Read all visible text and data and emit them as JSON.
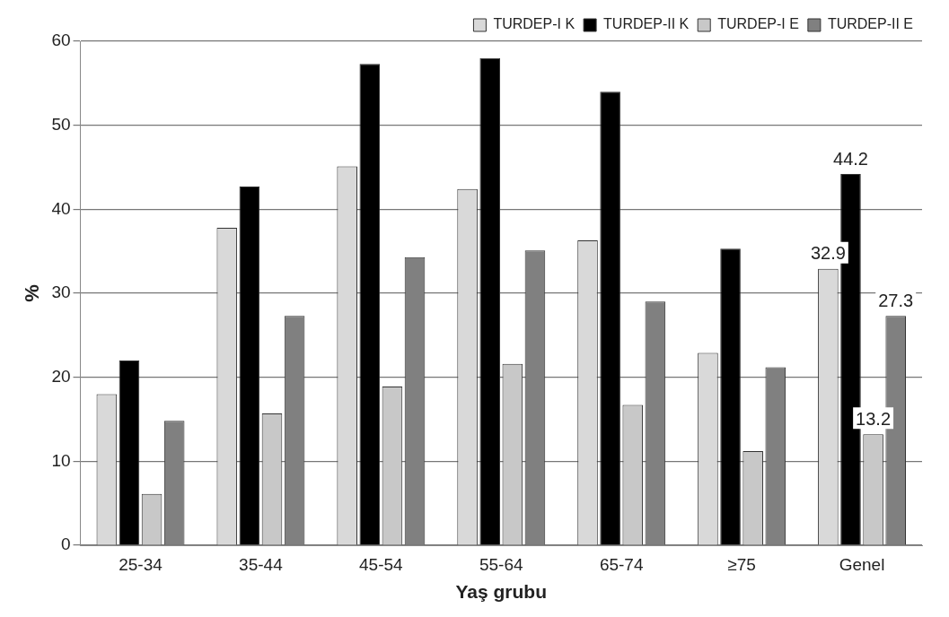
{
  "chart_data": {
    "type": "bar",
    "xlabel": "Yaş grubu",
    "ylabel": "%",
    "categories": [
      "25-34",
      "35-44",
      "45-54",
      "55-64",
      "65-74",
      "≥75",
      "Genel"
    ],
    "series": [
      {
        "name": "TURDEP-I K",
        "color": "#d9d9d9",
        "values": [
          18.0,
          37.8,
          45.1,
          42.4,
          36.3,
          22.9,
          32.9
        ],
        "value_labels": [
          null,
          null,
          null,
          null,
          null,
          null,
          "32.9"
        ]
      },
      {
        "name": "TURDEP-II K",
        "color": "#000000",
        "values": [
          22.0,
          42.7,
          57.3,
          58.0,
          54,
          35.3,
          44.2
        ],
        "value_labels": [
          null,
          null,
          null,
          null,
          null,
          null,
          "44.2"
        ]
      },
      {
        "name": "TURDEP-I E",
        "color": "#c8c8c8",
        "values": [
          6.1,
          15.7,
          18.9,
          21.6,
          16.7,
          11.2,
          13.2
        ],
        "value_labels": [
          null,
          null,
          null,
          null,
          null,
          null,
          "13.2"
        ]
      },
      {
        "name": "TURDEP-II E",
        "color": "#808080",
        "values": [
          14.8,
          27.3,
          34.3,
          35.1,
          29.0,
          21.2,
          27.3
        ],
        "value_labels": [
          null,
          null,
          null,
          null,
          null,
          null,
          "27.3"
        ]
      }
    ],
    "ylim": [
      0,
      60
    ],
    "yticks": [
      0,
      10,
      20,
      30,
      40,
      50,
      60
    ],
    "grid": "y",
    "legend": "top right"
  }
}
